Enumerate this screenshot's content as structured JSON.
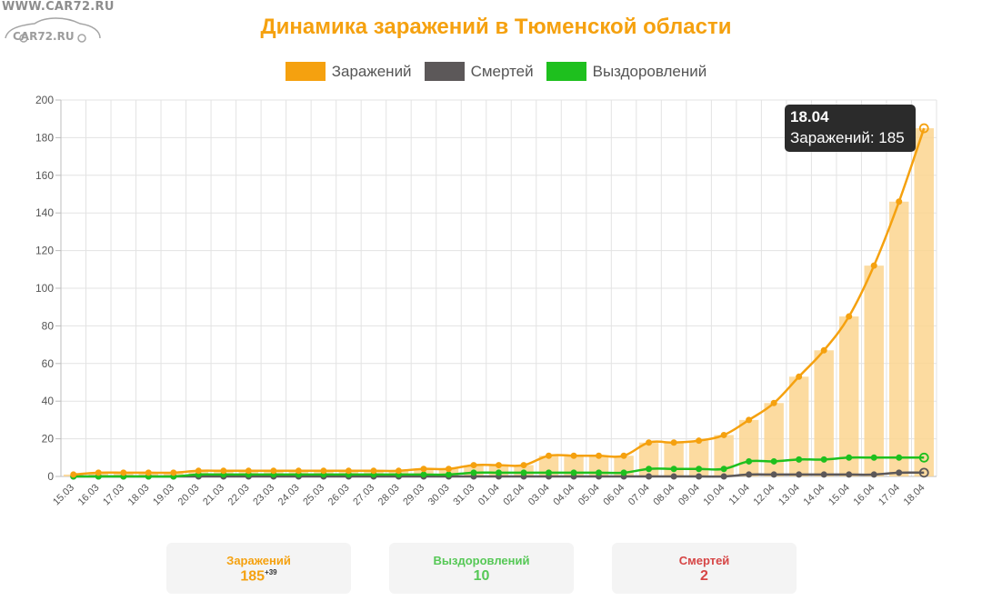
{
  "watermark": {
    "url": "WWW.CAR72.RU",
    "brand": "CAR72.RU"
  },
  "colors": {
    "infected": "#f5a10f",
    "infected_bar": "#fcd58f",
    "deaths": "#5c5859",
    "recovered": "#1ec01e",
    "grid": "#e3e3e3",
    "tooltip_bg": "#2b2b2b"
  },
  "chart_data": {
    "type": "line",
    "title": "Динамика заражений в Тюменской области",
    "categories": [
      "15.03",
      "16.03",
      "17.03",
      "18.03",
      "19.03",
      "20.03",
      "21.03",
      "22.03",
      "23.03",
      "24.03",
      "25.03",
      "26.03",
      "27.03",
      "28.03",
      "29.03",
      "30.03",
      "31.03",
      "01.04",
      "02.04",
      "03.04",
      "04.04",
      "05.04",
      "06.04",
      "07.04",
      "08.04",
      "09.04",
      "10.04",
      "11.04",
      "12.04",
      "13.04",
      "14.04",
      "15.04",
      "16.04",
      "17.04",
      "18.04"
    ],
    "series": [
      {
        "name": "Заражений",
        "display": "line+bar",
        "values": [
          1,
          2,
          2,
          2,
          2,
          3,
          3,
          3,
          3,
          3,
          3,
          3,
          3,
          3,
          4,
          4,
          6,
          6,
          6,
          11,
          11,
          11,
          11,
          18,
          18,
          19,
          22,
          30,
          39,
          53,
          67,
          85,
          112,
          146,
          185
        ]
      },
      {
        "name": "Смертей",
        "display": "line",
        "values": [
          0,
          0,
          0,
          0,
          0,
          0,
          0,
          0,
          0,
          0,
          0,
          0,
          0,
          0,
          0,
          0,
          0,
          0,
          0,
          0,
          0,
          0,
          0,
          0,
          0,
          0,
          0,
          1,
          1,
          1,
          1,
          1,
          1,
          2,
          2
        ]
      },
      {
        "name": "Выздоровлений",
        "display": "line",
        "values": [
          0,
          0,
          0,
          0,
          0,
          1,
          1,
          1,
          1,
          1,
          1,
          1,
          1,
          1,
          1,
          1,
          2,
          2,
          2,
          2,
          2,
          2,
          2,
          4,
          4,
          4,
          4,
          8,
          8,
          9,
          9,
          10,
          10,
          10,
          10
        ]
      }
    ],
    "ylim": [
      0,
      200
    ],
    "yticks": [
      0,
      20,
      40,
      60,
      80,
      100,
      120,
      140,
      160,
      180,
      200
    ],
    "grid": true,
    "legend": "top-center",
    "tooltip": {
      "date": "18.04",
      "text": "Заражений: 185"
    }
  },
  "legend": [
    {
      "label": "Заражений",
      "color": "#f5a10f"
    },
    {
      "label": "Смертей",
      "color": "#5c5859"
    },
    {
      "label": "Выздоровлений",
      "color": "#1ec01e"
    }
  ],
  "stats": {
    "infected": {
      "label": "Заражений",
      "value": "185",
      "delta": "+39"
    },
    "recovered": {
      "label": "Выздоровлений",
      "value": "10"
    },
    "deaths": {
      "label": "Смертей",
      "value": "2"
    }
  }
}
